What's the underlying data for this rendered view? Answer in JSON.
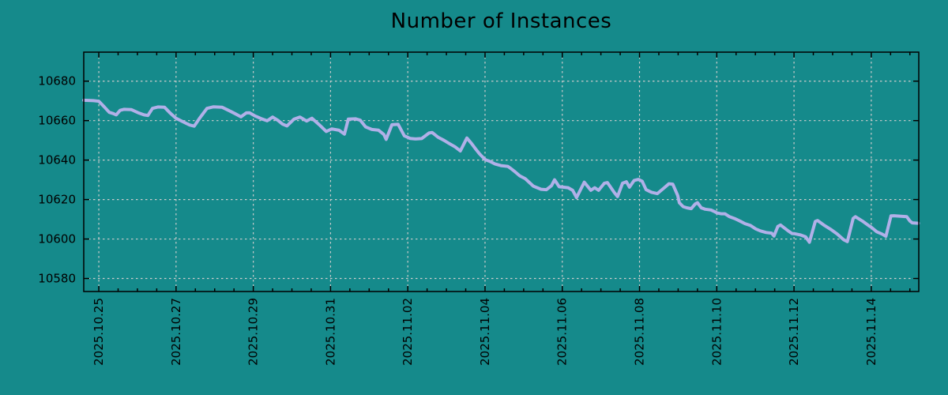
{
  "page": {
    "background": "#158a8b"
  },
  "chart_data": {
    "type": "line",
    "title": "Number of Instances",
    "xlabel": "",
    "ylabel": "",
    "legend": "none",
    "grid": "dashed",
    "colors": {
      "background": "#158a8b",
      "line": "#b1b0e8",
      "grid": "#cccccc",
      "axis": "#000000",
      "text": "#000000"
    },
    "x_axis": {
      "tick_labels": [
        "2025.10.25",
        "2025.10.27",
        "2025.10.29",
        "2025.10.31",
        "2025.11.02",
        "2025.11.04",
        "2025.11.06",
        "2025.11.08",
        "2025.11.10",
        "2025.11.12",
        "2025.11.14"
      ],
      "tick_days": [
        0,
        2,
        4,
        6,
        8,
        10,
        12,
        14,
        16,
        18,
        20
      ],
      "minor_tick_interval_days": 0.5,
      "range_days": [
        -0.39,
        21.23
      ],
      "epoch": "2025.10.25"
    },
    "y_axis": {
      "ticks": [
        10580,
        10600,
        10620,
        10640,
        10660,
        10680
      ],
      "range": [
        10573.4,
        10694.7
      ]
    },
    "series": [
      {
        "name": "instances",
        "color": "#b1b0e8",
        "points": [
          [
            -0.39,
            10670.3
          ],
          [
            -0.14,
            10670.1
          ],
          [
            0,
            10669.8
          ],
          [
            0.14,
            10667
          ],
          [
            0.27,
            10664.2
          ],
          [
            0.37,
            10663.6
          ],
          [
            0.45,
            10662.9
          ],
          [
            0.55,
            10665.2
          ],
          [
            0.65,
            10665.7
          ],
          [
            0.84,
            10665.6
          ],
          [
            1.02,
            10664
          ],
          [
            1.17,
            10662.9
          ],
          [
            1.27,
            10662.6
          ],
          [
            1.39,
            10666.2
          ],
          [
            1.53,
            10666.9
          ],
          [
            1.7,
            10666.8
          ],
          [
            1.84,
            10664
          ],
          [
            2,
            10661.2
          ],
          [
            2.19,
            10659.3
          ],
          [
            2.35,
            10657.8
          ],
          [
            2.47,
            10657.2
          ],
          [
            2.62,
            10661.5
          ],
          [
            2.8,
            10666.2
          ],
          [
            2.97,
            10667
          ],
          [
            3.19,
            10666.8
          ],
          [
            3.42,
            10664.6
          ],
          [
            3.56,
            10663.2
          ],
          [
            3.68,
            10661.9
          ],
          [
            3.82,
            10663.9
          ],
          [
            3.9,
            10664
          ],
          [
            4.03,
            10662.5
          ],
          [
            4.23,
            10660.8
          ],
          [
            4.36,
            10659.9
          ],
          [
            4.5,
            10661.8
          ],
          [
            4.64,
            10660.1
          ],
          [
            4.76,
            10658.2
          ],
          [
            4.87,
            10657.3
          ],
          [
            5.05,
            10660.7
          ],
          [
            5.21,
            10661.8
          ],
          [
            5.38,
            10659.8
          ],
          [
            5.52,
            10661.2
          ],
          [
            5.73,
            10657.5
          ],
          [
            5.89,
            10654.5
          ],
          [
            6.03,
            10655.8
          ],
          [
            6.22,
            10655.1
          ],
          [
            6.36,
            10653.2
          ],
          [
            6.46,
            10660.8
          ],
          [
            6.65,
            10660.9
          ],
          [
            6.77,
            10660.2
          ],
          [
            6.91,
            10656.8
          ],
          [
            7.07,
            10655.5
          ],
          [
            7.24,
            10655.2
          ],
          [
            7.38,
            10653
          ],
          [
            7.44,
            10650.5
          ],
          [
            7.59,
            10657.9
          ],
          [
            7.75,
            10658.1
          ],
          [
            7.91,
            10652.3
          ],
          [
            8.06,
            10651
          ],
          [
            8.2,
            10650.7
          ],
          [
            8.36,
            10650.9
          ],
          [
            8.55,
            10653.7
          ],
          [
            8.63,
            10654
          ],
          [
            8.79,
            10651.5
          ],
          [
            8.94,
            10650
          ],
          [
            9.08,
            10648.3
          ],
          [
            9.22,
            10646.8
          ],
          [
            9.36,
            10644.6
          ],
          [
            9.53,
            10651.2
          ],
          [
            9.65,
            10648.4
          ],
          [
            9.75,
            10645.8
          ],
          [
            9.86,
            10643.1
          ],
          [
            9.96,
            10641.1
          ],
          [
            10.02,
            10640.1
          ],
          [
            10.12,
            10639.4
          ],
          [
            10.26,
            10638
          ],
          [
            10.41,
            10637.2
          ],
          [
            10.59,
            10636.8
          ],
          [
            10.65,
            10636
          ],
          [
            10.78,
            10634
          ],
          [
            10.9,
            10632
          ],
          [
            11.04,
            10630.6
          ],
          [
            11.25,
            10626.8
          ],
          [
            11.45,
            10625.2
          ],
          [
            11.59,
            10625
          ],
          [
            11.72,
            10627
          ],
          [
            11.8,
            10630
          ],
          [
            11.92,
            10626.5
          ],
          [
            12.02,
            10626.3
          ],
          [
            12.15,
            10626
          ],
          [
            12.27,
            10624.7
          ],
          [
            12.37,
            10621
          ],
          [
            12.57,
            10628.8
          ],
          [
            12.74,
            10624.7
          ],
          [
            12.84,
            10626
          ],
          [
            12.94,
            10624.7
          ],
          [
            13.09,
            10628.3
          ],
          [
            13.17,
            10628.6
          ],
          [
            13.35,
            10623.5
          ],
          [
            13.43,
            10621.5
          ],
          [
            13.56,
            10628.3
          ],
          [
            13.66,
            10629
          ],
          [
            13.74,
            10626.3
          ],
          [
            13.86,
            10629.7
          ],
          [
            13.97,
            10630.2
          ],
          [
            14.07,
            10629.3
          ],
          [
            14.17,
            10625
          ],
          [
            14.31,
            10623.7
          ],
          [
            14.46,
            10623
          ],
          [
            14.66,
            10626.3
          ],
          [
            14.76,
            10628
          ],
          [
            14.86,
            10627.8
          ],
          [
            14.99,
            10622
          ],
          [
            15.03,
            10618.4
          ],
          [
            15.13,
            10616.4
          ],
          [
            15.23,
            10615.8
          ],
          [
            15.34,
            10615.4
          ],
          [
            15.44,
            10617.7
          ],
          [
            15.5,
            10618.4
          ],
          [
            15.6,
            10615.8
          ],
          [
            15.7,
            10615.1
          ],
          [
            15.85,
            10614.7
          ],
          [
            15.95,
            10613.8
          ],
          [
            16.01,
            10613.2
          ],
          [
            16.11,
            10612.8
          ],
          [
            16.21,
            10612.8
          ],
          [
            16.32,
            10611.4
          ],
          [
            16.46,
            10610.4
          ],
          [
            16.6,
            10609.1
          ],
          [
            16.73,
            10607.8
          ],
          [
            16.87,
            10606.9
          ],
          [
            17.01,
            10605.1
          ],
          [
            17.13,
            10604.1
          ],
          [
            17.28,
            10603.3
          ],
          [
            17.42,
            10603
          ],
          [
            17.48,
            10601.5
          ],
          [
            17.58,
            10606.4
          ],
          [
            17.65,
            10607.1
          ],
          [
            17.83,
            10604.4
          ],
          [
            17.95,
            10602.8
          ],
          [
            18.01,
            10602.7
          ],
          [
            18.16,
            10602.1
          ],
          [
            18.3,
            10601.1
          ],
          [
            18.4,
            10598.4
          ],
          [
            18.55,
            10608.9
          ],
          [
            18.61,
            10609.4
          ],
          [
            18.77,
            10607.1
          ],
          [
            18.95,
            10604.9
          ],
          [
            19.12,
            10602.5
          ],
          [
            19.28,
            10599.7
          ],
          [
            19.38,
            10598.7
          ],
          [
            19.53,
            10610.4
          ],
          [
            19.59,
            10611.3
          ],
          [
            19.77,
            10609.1
          ],
          [
            19.94,
            10606.7
          ],
          [
            20,
            10606
          ],
          [
            20.14,
            10603.7
          ],
          [
            20.28,
            10602.5
          ],
          [
            20.38,
            10601.4
          ],
          [
            20.51,
            10611.7
          ],
          [
            20.59,
            10611.8
          ],
          [
            20.92,
            10611.3
          ],
          [
            21,
            10609.1
          ],
          [
            21.06,
            10608.2
          ],
          [
            21.22,
            10608
          ]
        ]
      }
    ]
  }
}
